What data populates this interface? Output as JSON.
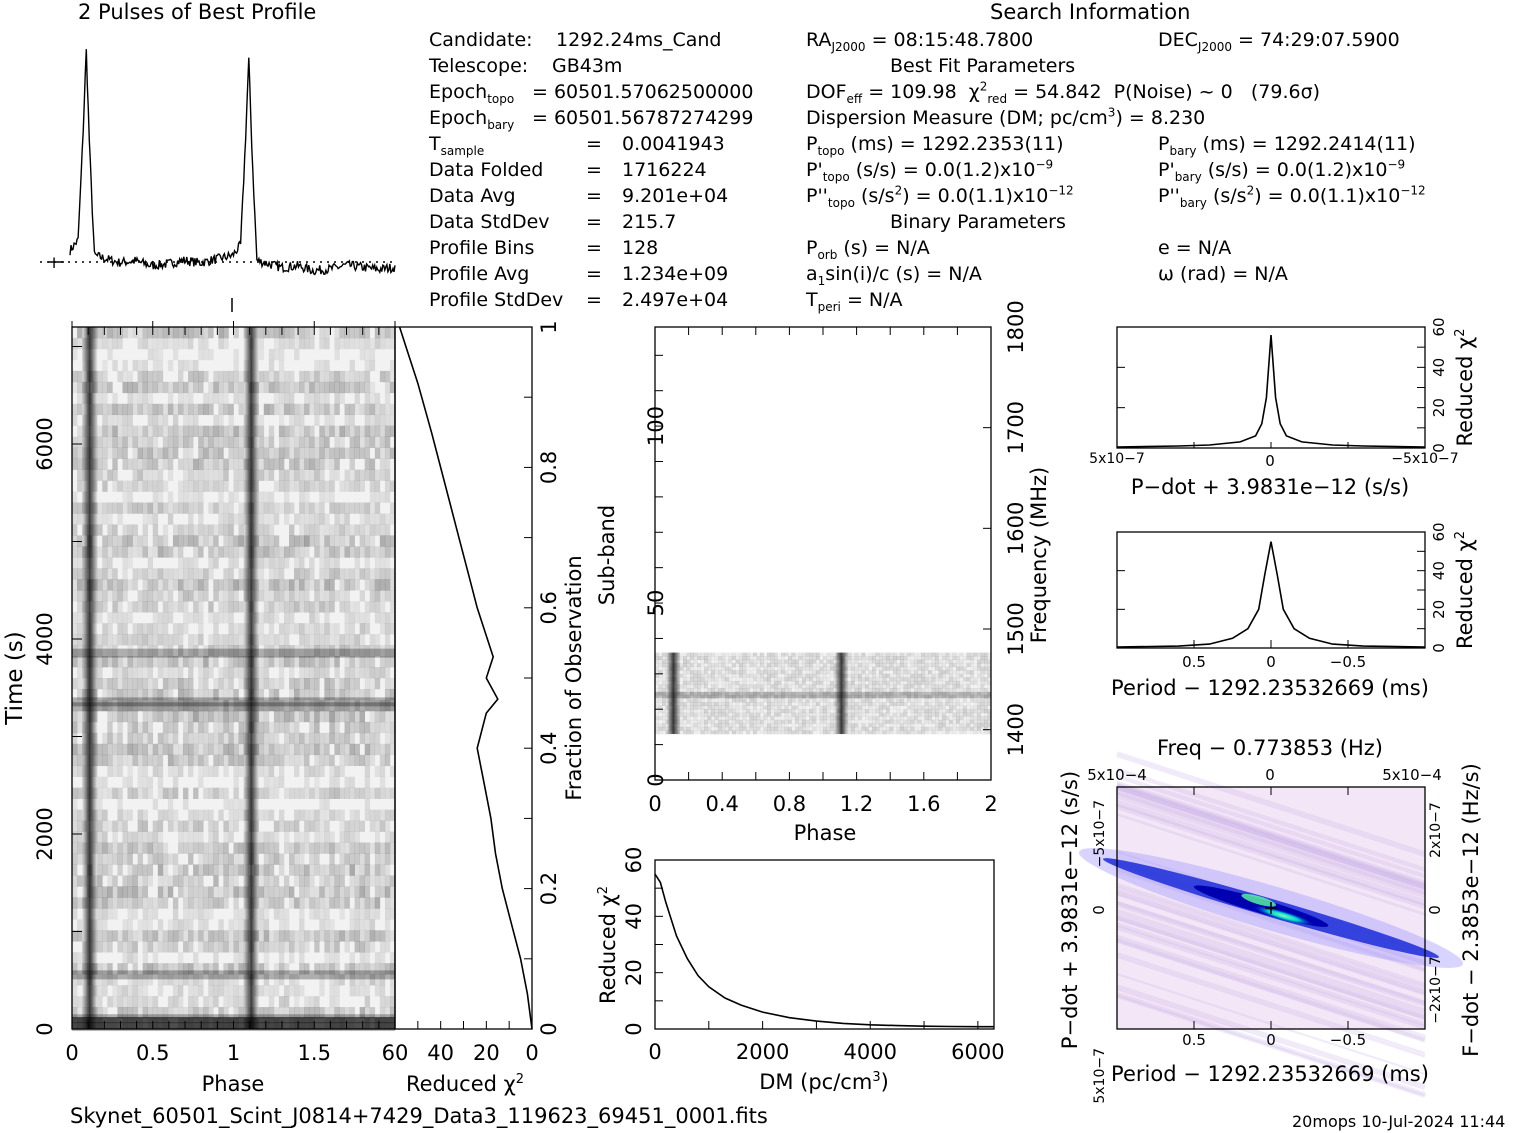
{
  "colors": {
    "ink": "#000000",
    "accent": "#0000cc",
    "highlight": "#22ffbb",
    "background_tint": "#f3e6f6"
  },
  "profile_panel": {
    "title": "2 Pulses of Best Profile"
  },
  "search_info": {
    "title": "Search Information",
    "best_fit_title": "Best Fit Parameters",
    "binary_title": "Binary Parameters",
    "left": [
      {
        "label": "Candidate:",
        "value": "1292.24ms_Cand"
      },
      {
        "label": "Telescope:",
        "value": "GB43m"
      },
      {
        "label": "Epoch",
        "sub": "topo",
        "value": "= 60501.57062500000"
      },
      {
        "label": "Epoch",
        "sub": "bary",
        "value": "= 60501.56787274299"
      },
      {
        "label": "T",
        "sub": "sample",
        "value": "= 0.0041943"
      },
      {
        "label": "Data Folded",
        "value": "= 1716224"
      },
      {
        "label": "Data Avg",
        "value": "= 9.201e+04"
      },
      {
        "label": "Data StdDev",
        "value": "= 215.7"
      },
      {
        "label": "Profile Bins",
        "value": "= 128"
      },
      {
        "label": "Profile Avg",
        "value": "= 1.234e+09"
      },
      {
        "label": "Profile StdDev",
        "value": "= 2.497e+04"
      }
    ],
    "ra": "RA",
    "ra_sub": "J2000",
    "ra_value": "= 08:15:48.7800",
    "dec": "DEC",
    "dec_sub": "J2000",
    "dec_value": "= 74:29:07.5900",
    "dof_label": "DOF",
    "dof_sub": "eff",
    "dof_value": "= 109.98",
    "chi_label": "χ",
    "chi_sup": "2",
    "chi_sub": "red",
    "chi_value": "= 54.842",
    "pnoise": "P(Noise) ~ 0",
    "sigma": "(79.6σ)",
    "dm_text": "Dispersion Measure (DM; pc/cm",
    "dm_sup": "3",
    "dm_value": ") = 8.230",
    "ptopo_label": "P",
    "ptopo_sub": "topo",
    "ptopo_value": "(ms) = 1292.2353(11)",
    "pbary_label": "P",
    "pbary_sub": "bary",
    "pbary_value": "(ms) = 1292.2414(11)",
    "pdtopo_label": "P'",
    "pdtopo_sub": "topo",
    "pdtopo_value": "(s/s) = 0.0(1.2)x10",
    "pdtopo_exp": "−9",
    "pdbary_label": "P'",
    "pdbary_sub": "bary",
    "pdbary_value": "(s/s) = 0.0(1.2)x10",
    "pdbary_exp": "−9",
    "pddtopo_label": "P''",
    "pddtopo_sub": "topo",
    "pddtopo_value": "(s/s",
    "pddtopo_sup": "2",
    "pddtopo_value2": ") = 0.0(1.1)x10",
    "pddtopo_exp": "−12",
    "pddbary_label": "P''",
    "pddbary_sub": "bary",
    "pddbary_value": "(s/s",
    "pddbary_sup": "2",
    "pddbary_value2": ") = 0.0(1.1)x10",
    "pddbary_exp": "−12",
    "porb_label": "P",
    "porb_sub": "orb",
    "porb_value": "(s) = N/A",
    "a1_label": "a",
    "a1_sub": "1",
    "a1_value": "sin(i)/c (s) = N/A",
    "tperi_label": "T",
    "tperi_sub": "peri",
    "tperi_value": "= N/A",
    "e_value": "e = N/A",
    "omega_value": "ω (rad) = N/A"
  },
  "footer": {
    "filename": "Skynet_60501_Scint_J0814+7429_Data3_119623_69451_0001.fits",
    "stamp": "20mops 10-Jul-2024 11:44"
  },
  "chart_data": [
    {
      "type": "line",
      "name": "profile",
      "title": "2 Pulses of Best Profile",
      "x": [
        0.0,
        0.05,
        0.08,
        0.1,
        0.12,
        0.15,
        0.2,
        0.3,
        0.4,
        0.5,
        0.6,
        0.7,
        0.8,
        0.9,
        1.0,
        1.05,
        1.08,
        1.1,
        1.12,
        1.15,
        1.2,
        1.3,
        1.4,
        1.5,
        1.6,
        1.7,
        1.8,
        1.9,
        2.0
      ],
      "y": [
        0.05,
        0.1,
        0.6,
        1.0,
        0.55,
        0.03,
        0.02,
        0.0,
        0.01,
        -0.01,
        0.0,
        0.02,
        0.01,
        0.03,
        0.05,
        0.1,
        0.6,
        0.98,
        0.55,
        0.03,
        0.02,
        0.0,
        0.01,
        -0.01,
        0.0,
        0.02,
        0.01,
        0.0,
        0.01
      ],
      "xlim": [
        0,
        2
      ],
      "ylim": [
        -0.1,
        1.05
      ]
    },
    {
      "type": "heatmap",
      "name": "time-phase",
      "xlabel": "Phase",
      "ylabel": "Time (s)",
      "xlim": [
        0,
        2
      ],
      "ylim": [
        0,
        7200
      ],
      "xticks": [
        "0",
        "0.5",
        "1",
        "1.5"
      ],
      "yticks": [
        "0",
        "2000",
        "4000",
        "6000"
      ],
      "pulse_phases": [
        0.11,
        1.11
      ],
      "bright_rows_time": [
        3350,
        3300,
        3850,
        550,
        100,
        20
      ]
    },
    {
      "type": "line",
      "name": "chi-vs-time",
      "xlabel": "Reduced χ2",
      "right_axis_label": "Fraction of Observation",
      "xlim": [
        60,
        0
      ],
      "ylim": [
        0,
        1
      ],
      "xticks": [
        "60",
        "40",
        "20",
        "0"
      ],
      "yticks": [
        "0",
        "0.2",
        "0.4",
        "0.6",
        "0.8",
        "1"
      ],
      "chi": [
        0,
        2,
        5,
        9,
        13,
        16,
        18,
        21,
        24,
        20,
        15,
        20,
        17,
        24,
        28,
        32,
        36,
        44,
        50,
        55,
        58
      ],
      "fraction": [
        0,
        0.05,
        0.1,
        0.15,
        0.2,
        0.25,
        0.3,
        0.35,
        0.4,
        0.45,
        0.47,
        0.5,
        0.53,
        0.6,
        0.65,
        0.7,
        0.75,
        0.85,
        0.92,
        0.97,
        1.0
      ]
    },
    {
      "type": "heatmap",
      "name": "subband-phase",
      "xlabel": "Phase",
      "ylabel": "Sub-band",
      "right_axis_label": "Frequency (MHz)",
      "xlim": [
        0,
        2
      ],
      "ylim": [
        0,
        128
      ],
      "xticks": [
        "0",
        "0.4",
        "0.8",
        "1.2",
        "1.6",
        "2"
      ],
      "yticks": [
        "0",
        "50",
        "100"
      ],
      "freq_ticks": [
        "1400",
        "1500",
        "1600",
        "1700",
        "1800"
      ],
      "freq_range": [
        1350,
        1800
      ],
      "filled_subbands": [
        13,
        36
      ],
      "pulse_phases": [
        0.11,
        1.11
      ],
      "bright_subband": 24
    },
    {
      "type": "line",
      "name": "dm-curve",
      "xlabel": "DM (pc/cm3)",
      "ylabel": "Reduced χ2",
      "xlim": [
        0,
        6300
      ],
      "ylim": [
        0,
        60
      ],
      "xticks": [
        "0",
        "2000",
        "4000",
        "6000"
      ],
      "yticks": [
        "0",
        "20",
        "40",
        "60"
      ],
      "x": [
        0,
        100,
        200,
        400,
        600,
        800,
        1000,
        1300,
        1600,
        2000,
        2500,
        3000,
        3500,
        4000,
        4500,
        5000,
        5500,
        6000,
        6300
      ],
      "y": [
        55,
        52,
        45,
        33,
        25,
        19,
        15,
        11,
        8.5,
        6,
        4,
        2.8,
        2,
        1.5,
        1.2,
        1.0,
        0.9,
        0.8,
        0.8
      ]
    },
    {
      "type": "line",
      "name": "pdot-curve",
      "xlabel": "P−dot + 3.9831e−12 (s/s)",
      "ylabel": "Reduced χ2",
      "xlim": [
        5e-07,
        -5e-07
      ],
      "ylim": [
        0,
        60
      ],
      "xticks": [
        "5x10−7",
        "0",
        "−5x10−7"
      ],
      "yticks": [
        "0",
        "20",
        "40",
        "60"
      ],
      "x": [
        5e-07,
        3e-07,
        2e-07,
        1e-07,
        5e-08,
        3e-08,
        1.5e-08,
        0,
        -1.5e-08,
        -3e-08,
        -5e-08,
        -1e-07,
        -2e-07,
        -3e-07,
        -5e-07
      ],
      "y": [
        0.5,
        1,
        1.5,
        3,
        6,
        12,
        25,
        56,
        25,
        12,
        6,
        3,
        1.5,
        1,
        0.5
      ]
    },
    {
      "type": "line",
      "name": "period-curve",
      "xlabel": "Period − 1292.23532669 (ms)",
      "ylabel": "Reduced χ2",
      "xlim": [
        1,
        -1
      ],
      "ylim": [
        0,
        60
      ],
      "xticks": [
        "0.5",
        "0",
        "−0.5"
      ],
      "yticks": [
        "0",
        "20",
        "40",
        "60"
      ],
      "x": [
        1,
        0.6,
        0.4,
        0.25,
        0.15,
        0.08,
        0.04,
        0,
        -0.04,
        -0.08,
        -0.15,
        -0.25,
        -0.4,
        -0.6,
        -1
      ],
      "y": [
        0.5,
        1,
        2,
        5,
        10,
        20,
        38,
        55,
        38,
        20,
        10,
        5,
        2,
        1,
        0.5
      ]
    },
    {
      "type": "heatmap",
      "name": "p-pdot-plane",
      "title": "Freq − 0.773853 (Hz)",
      "xlabel": "Period − 1292.23532669 (ms)",
      "ylabel": "P−dot + 3.9831e−12 (s/s)",
      "right_axis_label": "F−dot − 2.3853e−12 (Hz/s)",
      "xlim": [
        1,
        -1
      ],
      "ylim": [
        5e-07,
        -5e-07
      ],
      "xticks": [
        "0.5",
        "0",
        "−0.5"
      ],
      "top_ticks": [
        "5x10−4",
        "0",
        "5x10−4"
      ],
      "left_ticks": [
        "−5x10−7",
        "0",
        "5x10−7"
      ],
      "right_ticks": [
        "2x10−7",
        "0",
        "−2x10−7"
      ],
      "peak": [
        0,
        0
      ]
    }
  ]
}
